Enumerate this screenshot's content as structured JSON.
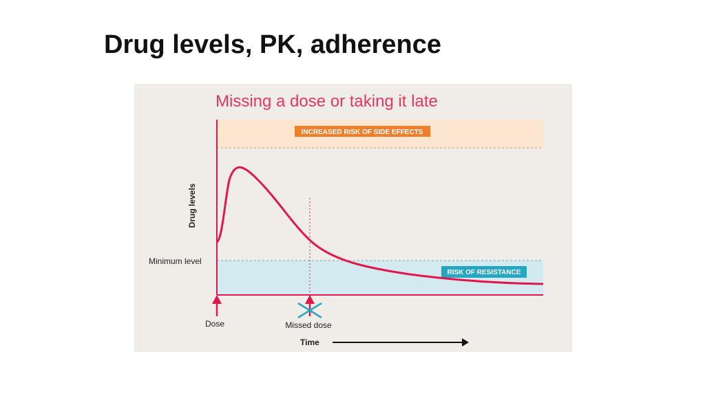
{
  "slide": {
    "title": "Drug levels, PK, adherence"
  },
  "figure": {
    "title": "Missing a dose or taking it late",
    "side_effects_label": "INCREASED RISK OF SIDE EFFECTS",
    "resistance_label": "RISK OF RESISTANCE",
    "y_axis_label": "Drug levels",
    "minimum_level_label": "Minimum level",
    "dose_label": "Dose",
    "missed_dose_label": "Missed dose",
    "time_label": "Time",
    "colors": {
      "background": "#f0ece8",
      "accent_red": "#e0174a",
      "side_effects_band": "#fde6cf",
      "side_effects_badge": "#f07f2c",
      "resistance_band": "#d3eaf0",
      "resistance_badge": "#27a6c2",
      "title_red": "#e0395f"
    }
  }
}
